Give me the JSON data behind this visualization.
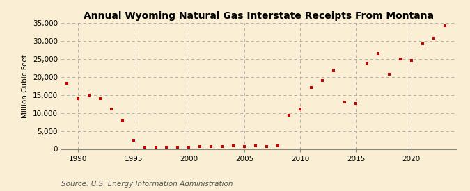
{
  "title": "Annual Wyoming Natural Gas Interstate Receipts From Montana",
  "ylabel": "Million Cubic Feet",
  "source": "Source: U.S. Energy Information Administration",
  "background_color": "#faefd4",
  "marker_color": "#cc0000",
  "years": [
    1989,
    1990,
    1991,
    1992,
    1993,
    1994,
    1995,
    1996,
    1997,
    1998,
    1999,
    2000,
    2001,
    2002,
    2003,
    2004,
    2005,
    2006,
    2007,
    2008,
    2009,
    2010,
    2011,
    2012,
    2013,
    2014,
    2015,
    2016,
    2017,
    2018,
    2019,
    2020,
    2021,
    2022,
    2023
  ],
  "values": [
    18200,
    14000,
    15000,
    14000,
    11000,
    7800,
    2500,
    400,
    400,
    500,
    400,
    500,
    600,
    600,
    700,
    800,
    700,
    800,
    700,
    800,
    9300,
    11000,
    17000,
    19000,
    21800,
    13000,
    12600,
    23900,
    26500,
    20700,
    25000,
    24600,
    29300,
    30800,
    34200
  ],
  "ylim": [
    0,
    35000
  ],
  "yticks": [
    0,
    5000,
    10000,
    15000,
    20000,
    25000,
    30000,
    35000
  ],
  "xlim": [
    1988.5,
    2024.0
  ],
  "xticks": [
    1990,
    1995,
    2000,
    2005,
    2010,
    2015,
    2020
  ],
  "grid_color": "#b0b0b0",
  "title_fontsize": 10,
  "label_fontsize": 7.5,
  "tick_fontsize": 7.5,
  "source_fontsize": 7.5
}
